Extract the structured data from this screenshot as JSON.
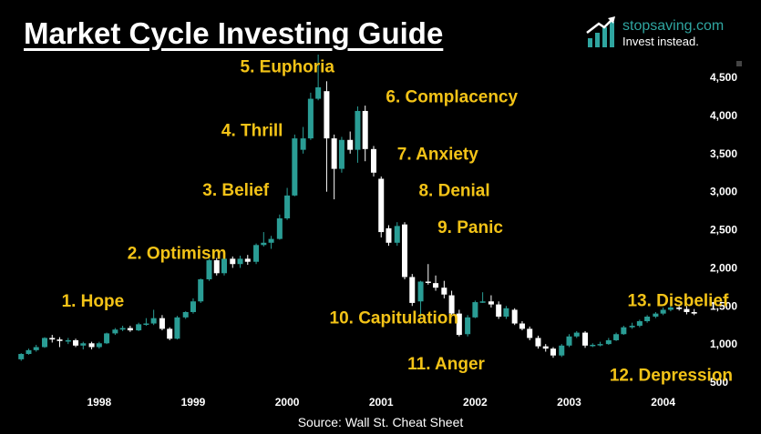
{
  "header": {
    "title": "Market Cycle Investing Guide",
    "brand_name": "stopsaving.com",
    "brand_tagline": "Invest instead.",
    "brand_icon": "bar-chart-arrow-icon"
  },
  "footer": {
    "source": "Source: Wall St. Cheat Sheet"
  },
  "colors": {
    "background": "#000000",
    "up": "#2a9d95",
    "down": "#ffffff",
    "label": "#f3c317",
    "brand": "#2fa5a0"
  },
  "chart_data": {
    "type": "candlestick",
    "title": "Market Cycle Investing Guide",
    "xlabel": "",
    "ylabel": "",
    "ylim": [
      500,
      4800
    ],
    "yticks": [
      "500",
      "1,000",
      "1,500",
      "2,000",
      "2,500",
      "3,000",
      "3,500",
      "4,000",
      "4,500"
    ],
    "ytick_values": [
      500,
      1000,
      1500,
      2000,
      2500,
      3000,
      3500,
      4000,
      4500
    ],
    "xticks": [
      "1998",
      "1999",
      "2000",
      "2001",
      "2002",
      "2003",
      "2004"
    ],
    "xtick_values": [
      1998.0,
      1999.0,
      2000.0,
      2001.0,
      2002.0,
      2003.0,
      2004.0
    ],
    "grid": false,
    "candles": [
      {
        "t": 1997.17,
        "o": 800,
        "c": 870,
        "h": 880,
        "l": 780
      },
      {
        "t": 1997.25,
        "o": 870,
        "c": 920,
        "h": 940,
        "l": 860
      },
      {
        "t": 1997.33,
        "o": 920,
        "c": 960,
        "h": 990,
        "l": 900
      },
      {
        "t": 1997.42,
        "o": 960,
        "c": 1080,
        "h": 1090,
        "l": 950
      },
      {
        "t": 1997.5,
        "o": 1080,
        "c": 1060,
        "h": 1120,
        "l": 1020
      },
      {
        "t": 1997.58,
        "o": 1060,
        "c": 1040,
        "h": 1090,
        "l": 960
      },
      {
        "t": 1997.67,
        "o": 1040,
        "c": 1050,
        "h": 1080,
        "l": 1000
      },
      {
        "t": 1997.75,
        "o": 1050,
        "c": 980,
        "h": 1070,
        "l": 960
      },
      {
        "t": 1997.83,
        "o": 980,
        "c": 1010,
        "h": 1030,
        "l": 930
      },
      {
        "t": 1997.92,
        "o": 1010,
        "c": 960,
        "h": 1030,
        "l": 930
      },
      {
        "t": 1998.0,
        "o": 960,
        "c": 1010,
        "h": 1030,
        "l": 940
      },
      {
        "t": 1998.08,
        "o": 1010,
        "c": 1140,
        "h": 1150,
        "l": 1000
      },
      {
        "t": 1998.17,
        "o": 1140,
        "c": 1190,
        "h": 1210,
        "l": 1120
      },
      {
        "t": 1998.25,
        "o": 1190,
        "c": 1210,
        "h": 1240,
        "l": 1170
      },
      {
        "t": 1998.33,
        "o": 1210,
        "c": 1180,
        "h": 1240,
        "l": 1160
      },
      {
        "t": 1998.42,
        "o": 1180,
        "c": 1260,
        "h": 1280,
        "l": 1170
      },
      {
        "t": 1998.5,
        "o": 1260,
        "c": 1270,
        "h": 1340,
        "l": 1240
      },
      {
        "t": 1998.58,
        "o": 1270,
        "c": 1340,
        "h": 1450,
        "l": 1250
      },
      {
        "t": 1998.67,
        "o": 1340,
        "c": 1200,
        "h": 1380,
        "l": 1180
      },
      {
        "t": 1998.75,
        "o": 1200,
        "c": 1070,
        "h": 1220,
        "l": 1050
      },
      {
        "t": 1998.83,
        "o": 1070,
        "c": 1350,
        "h": 1370,
        "l": 1060
      },
      {
        "t": 1998.92,
        "o": 1350,
        "c": 1420,
        "h": 1430,
        "l": 1330
      },
      {
        "t": 1999.0,
        "o": 1420,
        "c": 1560,
        "h": 1600,
        "l": 1400
      },
      {
        "t": 1999.08,
        "o": 1560,
        "c": 1850,
        "h": 1860,
        "l": 1540
      },
      {
        "t": 1999.17,
        "o": 1850,
        "c": 2100,
        "h": 2120,
        "l": 1830
      },
      {
        "t": 1999.25,
        "o": 2100,
        "c": 1930,
        "h": 2130,
        "l": 1900
      },
      {
        "t": 1999.33,
        "o": 1930,
        "c": 2120,
        "h": 2160,
        "l": 1900
      },
      {
        "t": 1999.42,
        "o": 2120,
        "c": 2050,
        "h": 2150,
        "l": 2000
      },
      {
        "t": 1999.5,
        "o": 2050,
        "c": 2120,
        "h": 2160,
        "l": 2000
      },
      {
        "t": 1999.58,
        "o": 2120,
        "c": 2080,
        "h": 2170,
        "l": 2040
      },
      {
        "t": 1999.67,
        "o": 2080,
        "c": 2300,
        "h": 2320,
        "l": 2050
      },
      {
        "t": 1999.75,
        "o": 2300,
        "c": 2330,
        "h": 2470,
        "l": 2280
      },
      {
        "t": 1999.83,
        "o": 2330,
        "c": 2380,
        "h": 2420,
        "l": 2250
      },
      {
        "t": 1999.92,
        "o": 2380,
        "c": 2650,
        "h": 2700,
        "l": 2370
      },
      {
        "t": 2000.0,
        "o": 2650,
        "c": 2950,
        "h": 3050,
        "l": 2630
      },
      {
        "t": 2000.08,
        "o": 2950,
        "c": 3700,
        "h": 3750,
        "l": 2940
      },
      {
        "t": 2000.17,
        "o": 3550,
        "c": 3700,
        "h": 3850,
        "l": 3500
      },
      {
        "t": 2000.25,
        "o": 3700,
        "c": 4220,
        "h": 4300,
        "l": 3680
      },
      {
        "t": 2000.33,
        "o": 4220,
        "c": 4370,
        "h": 4800,
        "l": 4200
      },
      {
        "t": 2000.42,
        "o": 4320,
        "c": 3700,
        "h": 4450,
        "l": 3000
      },
      {
        "t": 2000.5,
        "o": 3700,
        "c": 3300,
        "h": 3750,
        "l": 2900
      },
      {
        "t": 2000.58,
        "o": 3300,
        "c": 3680,
        "h": 3720,
        "l": 3250
      },
      {
        "t": 2000.67,
        "o": 3680,
        "c": 3550,
        "h": 3790,
        "l": 3500
      },
      {
        "t": 2000.75,
        "o": 3550,
        "c": 4060,
        "h": 4120,
        "l": 3380
      },
      {
        "t": 2000.83,
        "o": 4060,
        "c": 3560,
        "h": 4130,
        "l": 3400
      },
      {
        "t": 2000.92,
        "o": 3560,
        "c": 3250,
        "h": 3600,
        "l": 3200
      },
      {
        "t": 2001.0,
        "o": 3170,
        "c": 2470,
        "h": 3200,
        "l": 2400
      },
      {
        "t": 2001.08,
        "o": 2520,
        "c": 2330,
        "h": 2560,
        "l": 2290
      },
      {
        "t": 2001.17,
        "o": 2330,
        "c": 2550,
        "h": 2600,
        "l": 2290
      },
      {
        "t": 2001.25,
        "o": 2570,
        "c": 1880,
        "h": 2600,
        "l": 1850
      },
      {
        "t": 2001.33,
        "o": 1880,
        "c": 1540,
        "h": 1920,
        "l": 1500
      },
      {
        "t": 2001.42,
        "o": 1560,
        "c": 1820,
        "h": 1830,
        "l": 1350
      },
      {
        "t": 2001.5,
        "o": 1820,
        "c": 1810,
        "h": 2050,
        "l": 1780
      },
      {
        "t": 2001.58,
        "o": 1800,
        "c": 1740,
        "h": 1900,
        "l": 1700
      },
      {
        "t": 2001.67,
        "o": 1740,
        "c": 1650,
        "h": 1830,
        "l": 1600
      },
      {
        "t": 2001.75,
        "o": 1640,
        "c": 1400,
        "h": 1700,
        "l": 1380
      },
      {
        "t": 2001.83,
        "o": 1400,
        "c": 1120,
        "h": 1450,
        "l": 1100
      },
      {
        "t": 2001.92,
        "o": 1130,
        "c": 1350,
        "h": 1380,
        "l": 1100
      },
      {
        "t": 2002.0,
        "o": 1350,
        "c": 1550,
        "h": 1570,
        "l": 1340
      },
      {
        "t": 2002.08,
        "o": 1550,
        "c": 1560,
        "h": 1680,
        "l": 1540
      },
      {
        "t": 2002.17,
        "o": 1560,
        "c": 1520,
        "h": 1640,
        "l": 1480
      },
      {
        "t": 2002.25,
        "o": 1520,
        "c": 1360,
        "h": 1560,
        "l": 1330
      },
      {
        "t": 2002.33,
        "o": 1360,
        "c": 1470,
        "h": 1500,
        "l": 1330
      },
      {
        "t": 2002.42,
        "o": 1450,
        "c": 1270,
        "h": 1470,
        "l": 1250
      },
      {
        "t": 2002.5,
        "o": 1270,
        "c": 1200,
        "h": 1300,
        "l": 1180
      },
      {
        "t": 2002.58,
        "o": 1200,
        "c": 1080,
        "h": 1230,
        "l": 1050
      },
      {
        "t": 2002.67,
        "o": 1080,
        "c": 970,
        "h": 1110,
        "l": 940
      },
      {
        "t": 2002.75,
        "o": 970,
        "c": 940,
        "h": 1000,
        "l": 900
      },
      {
        "t": 2002.83,
        "o": 940,
        "c": 850,
        "h": 960,
        "l": 820
      },
      {
        "t": 2002.92,
        "o": 850,
        "c": 980,
        "h": 1000,
        "l": 830
      },
      {
        "t": 2003.0,
        "o": 980,
        "c": 1100,
        "h": 1130,
        "l": 960
      },
      {
        "t": 2003.08,
        "o": 1100,
        "c": 1150,
        "h": 1170,
        "l": 1080
      },
      {
        "t": 2003.17,
        "o": 1150,
        "c": 980,
        "h": 1170,
        "l": 950
      },
      {
        "t": 2003.25,
        "o": 980,
        "c": 990,
        "h": 1010,
        "l": 960
      },
      {
        "t": 2003.33,
        "o": 990,
        "c": 1000,
        "h": 1030,
        "l": 970
      },
      {
        "t": 2003.42,
        "o": 1000,
        "c": 1050,
        "h": 1080,
        "l": 990
      },
      {
        "t": 2003.5,
        "o": 1050,
        "c": 1130,
        "h": 1150,
        "l": 1040
      },
      {
        "t": 2003.58,
        "o": 1130,
        "c": 1220,
        "h": 1240,
        "l": 1120
      },
      {
        "t": 2003.67,
        "o": 1220,
        "c": 1240,
        "h": 1280,
        "l": 1200
      },
      {
        "t": 2003.75,
        "o": 1240,
        "c": 1300,
        "h": 1320,
        "l": 1220
      },
      {
        "t": 2003.83,
        "o": 1300,
        "c": 1360,
        "h": 1380,
        "l": 1280
      },
      {
        "t": 2003.92,
        "o": 1360,
        "c": 1400,
        "h": 1420,
        "l": 1340
      },
      {
        "t": 2004.0,
        "o": 1400,
        "c": 1450,
        "h": 1480,
        "l": 1380
      },
      {
        "t": 2004.08,
        "o": 1450,
        "c": 1480,
        "h": 1510,
        "l": 1430
      },
      {
        "t": 2004.17,
        "o": 1480,
        "c": 1460,
        "h": 1520,
        "l": 1440
      },
      {
        "t": 2004.25,
        "o": 1460,
        "c": 1420,
        "h": 1500,
        "l": 1390
      },
      {
        "t": 2004.33,
        "o": 1420,
        "c": 1400,
        "h": 1460,
        "l": 1380
      }
    ],
    "phases": [
      {
        "label": "1. Hope",
        "t": 1997.6,
        "v": 1490
      },
      {
        "label": "2. Optimism",
        "t": 1998.3,
        "v": 2120
      },
      {
        "label": "3. Belief",
        "t": 1999.1,
        "v": 2950
      },
      {
        "label": "4. Thrill",
        "t": 1999.3,
        "v": 3730
      },
      {
        "label": "5. Euphoria",
        "t": 1999.5,
        "v": 4570
      },
      {
        "label": "6. Complacency",
        "t": 2001.05,
        "v": 4170
      },
      {
        "label": "7. Anxiety",
        "t": 2001.17,
        "v": 3420
      },
      {
        "label": "8. Denial",
        "t": 2001.4,
        "v": 2940
      },
      {
        "label": "9. Panic",
        "t": 2001.6,
        "v": 2460
      },
      {
        "label": "10. Capitulation",
        "t": 2000.45,
        "v": 1270
      },
      {
        "label": "11. Anger",
        "t": 2001.28,
        "v": 670
      },
      {
        "label": "12. Depression",
        "t": 2003.43,
        "v": 520
      },
      {
        "label": "13. Disbelief",
        "t": 2003.62,
        "v": 1500
      }
    ]
  }
}
